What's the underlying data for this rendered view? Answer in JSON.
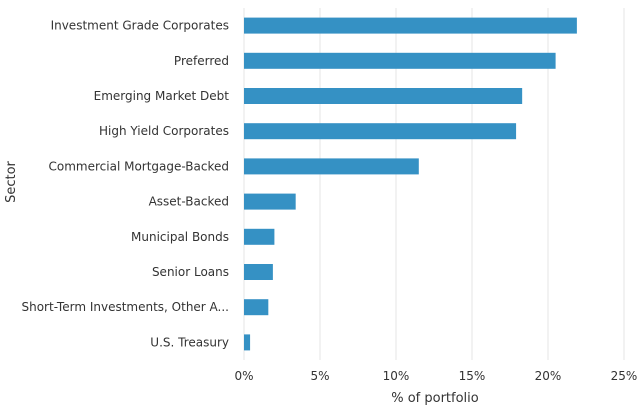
{
  "chart_data": {
    "type": "bar",
    "orientation": "horizontal",
    "categories": [
      "Investment Grade Corporates",
      "Preferred",
      "Emerging Market Debt",
      "High Yield Corporates",
      "Commercial Mortgage-Backed",
      "Asset-Backed",
      "Municipal Bonds",
      "Senior Loans",
      "Short-Term Investments, Other A...",
      "U.S. Treasury"
    ],
    "values": [
      21.9,
      20.5,
      18.3,
      17.9,
      11.5,
      3.4,
      2.0,
      1.9,
      1.6,
      0.4
    ],
    "xlabel": "% of portfolio",
    "ylabel": "Sector",
    "xlim": [
      0,
      25
    ],
    "xticks": [
      0,
      5,
      10,
      15,
      20,
      25
    ],
    "tick_suffix": "%",
    "grid": "vertical",
    "bar_color": "#3591c4",
    "grid_color": "#e6e6e6"
  }
}
